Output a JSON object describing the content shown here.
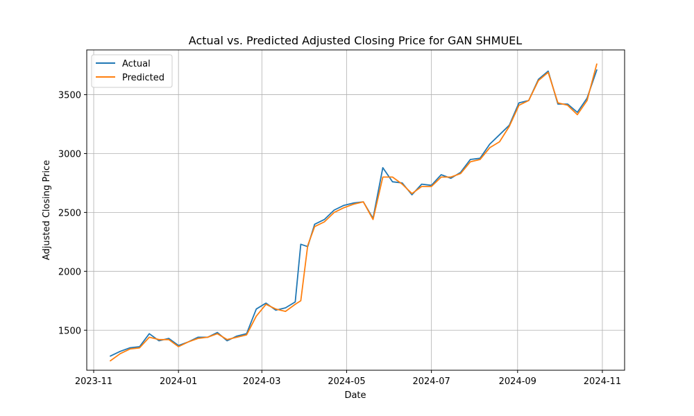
{
  "chart_data": {
    "type": "line",
    "title": "Actual vs. Predicted Adjusted Closing Price for GAN SHMUEL",
    "xlabel": "Date",
    "ylabel": "Adjusted Closing Price",
    "x_ticks": [
      "2023-11",
      "2024-01",
      "2024-03",
      "2024-05",
      "2024-07",
      "2024-09",
      "2024-11"
    ],
    "y_ticks": [
      1500,
      2000,
      2500,
      3000,
      3500
    ],
    "xlim": [
      "2023-10-27",
      "2024-11-17"
    ],
    "ylim": [
      1160,
      3880
    ],
    "grid": true,
    "legend_position": "top-left",
    "x": [
      "2023-11-13",
      "2023-11-20",
      "2023-11-27",
      "2023-12-04",
      "2023-12-11",
      "2023-12-18",
      "2023-12-25",
      "2024-01-01",
      "2024-01-08",
      "2024-01-15",
      "2024-01-22",
      "2024-01-29",
      "2024-02-05",
      "2024-02-12",
      "2024-02-19",
      "2024-02-26",
      "2024-03-04",
      "2024-03-11",
      "2024-03-18",
      "2024-03-25",
      "2024-03-29",
      "2024-04-03",
      "2024-04-08",
      "2024-04-15",
      "2024-04-22",
      "2024-04-29",
      "2024-05-06",
      "2024-05-13",
      "2024-05-20",
      "2024-05-27",
      "2024-06-03",
      "2024-06-10",
      "2024-06-17",
      "2024-06-24",
      "2024-07-01",
      "2024-07-08",
      "2024-07-15",
      "2024-07-22",
      "2024-07-29",
      "2024-08-05",
      "2024-08-12",
      "2024-08-19",
      "2024-08-26",
      "2024-09-02",
      "2024-09-09",
      "2024-09-16",
      "2024-09-23",
      "2024-09-30",
      "2024-10-07",
      "2024-10-14",
      "2024-10-21",
      "2024-10-28"
    ],
    "series": [
      {
        "name": "Actual",
        "color": "#1f77b4",
        "values": [
          1280,
          1320,
          1350,
          1360,
          1470,
          1410,
          1430,
          1370,
          1400,
          1440,
          1440,
          1480,
          1410,
          1450,
          1470,
          1680,
          1730,
          1670,
          1690,
          1740,
          2230,
          2210,
          2400,
          2440,
          2520,
          2560,
          2580,
          2590,
          2450,
          2880,
          2760,
          2750,
          2650,
          2740,
          2730,
          2820,
          2790,
          2840,
          2950,
          2960,
          3080,
          3160,
          3240,
          3430,
          3450,
          3630,
          3700,
          3420,
          3420,
          3350,
          3470,
          3710
        ]
      },
      {
        "name": "Predicted",
        "color": "#ff7f0e",
        "values": [
          1240,
          1300,
          1340,
          1350,
          1440,
          1420,
          1420,
          1360,
          1400,
          1430,
          1440,
          1470,
          1420,
          1440,
          1460,
          1620,
          1720,
          1680,
          1660,
          1720,
          1750,
          2220,
          2380,
          2420,
          2500,
          2540,
          2570,
          2590,
          2440,
          2800,
          2800,
          2740,
          2660,
          2720,
          2720,
          2800,
          2800,
          2830,
          2930,
          2950,
          3050,
          3100,
          3230,
          3410,
          3450,
          3620,
          3690,
          3430,
          3410,
          3330,
          3450,
          3760
        ]
      }
    ]
  }
}
